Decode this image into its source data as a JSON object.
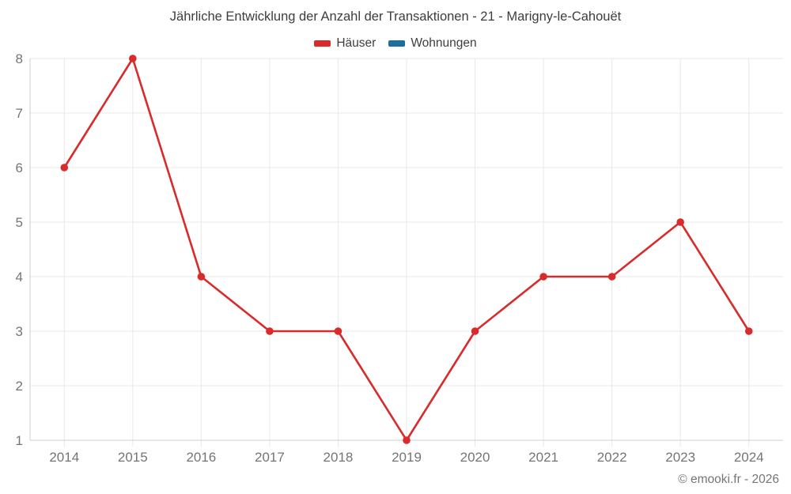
{
  "title": "Jährliche Entwicklung der Anzahl der Transaktionen - 21 - Marigny-le-Cahouët",
  "footer": {
    "credit": "© emooki.fr - 2026"
  },
  "colors": {
    "grid": "#e8e8e8",
    "axis": "#cfcfcf",
    "tick_text": "#757575",
    "title_text": "#3d3d3d"
  },
  "chart_data": {
    "type": "line",
    "title": "Jährliche Entwicklung der Anzahl der Transaktionen - 21 - Marigny-le-Cahouët",
    "categories": [
      "2014",
      "2015",
      "2016",
      "2017",
      "2018",
      "2019",
      "2020",
      "2021",
      "2022",
      "2023",
      "2024"
    ],
    "series": [
      {
        "name": "Häuser",
        "color": "#d92b2b",
        "values": [
          6,
          8,
          4,
          3,
          3,
          1,
          3,
          4,
          4,
          5,
          3
        ]
      },
      {
        "name": "Wohnungen",
        "color": "#1a6f9e",
        "values": []
      }
    ],
    "xlabel": "",
    "ylabel": "",
    "ylim": [
      1,
      8
    ],
    "yticks": [
      1,
      2,
      3,
      4,
      5,
      6,
      7,
      8
    ],
    "grid": true,
    "legend_position": "top"
  }
}
